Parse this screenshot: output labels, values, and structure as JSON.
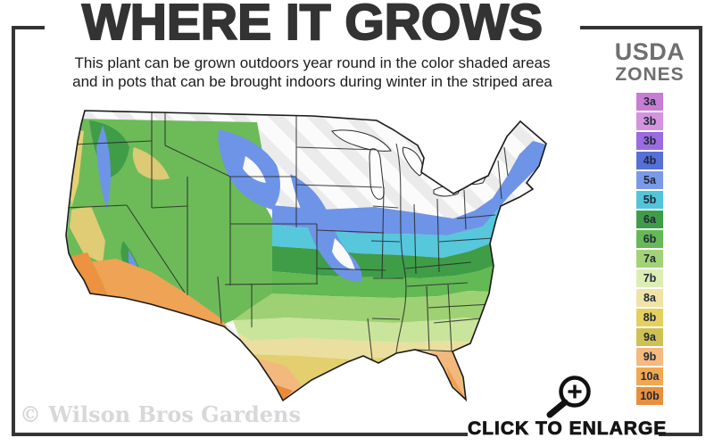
{
  "title": "WHERE IT GROWS",
  "subtitle": {
    "line1": "This plant can be grown outdoors year round in the color shaded areas",
    "line2": "and in pots that can be brought indoors during winter in the striped area"
  },
  "legend": {
    "title_line1": "USDA",
    "title_line2": "ZONES",
    "zones": [
      {
        "label": "3a",
        "color": "#c77dd1"
      },
      {
        "label": "3b",
        "color": "#d393dd"
      },
      {
        "label": "3b",
        "color": "#9a6ce0"
      },
      {
        "label": "4b",
        "color": "#5570d8"
      },
      {
        "label": "5a",
        "color": "#7a9ae8"
      },
      {
        "label": "5b",
        "color": "#52c5da"
      },
      {
        "label": "6a",
        "color": "#3f9c48"
      },
      {
        "label": "6b",
        "color": "#66b957"
      },
      {
        "label": "7a",
        "color": "#a3d377"
      },
      {
        "label": "7b",
        "color": "#dcedb5"
      },
      {
        "label": "8a",
        "color": "#f0e3a6"
      },
      {
        "label": "8b",
        "color": "#e4d05f"
      },
      {
        "label": "9a",
        "color": "#cfc054"
      },
      {
        "label": "9b",
        "color": "#f4ba80"
      },
      {
        "label": "10a",
        "color": "#f2a850"
      },
      {
        "label": "10b",
        "color": "#e88f3c"
      }
    ]
  },
  "watermark": "© Wilson Bros Gardens",
  "enlarge_label": "CLICK TO ENLARGE",
  "icons": {
    "magnifier": "magnifier-plus-icon"
  },
  "colors": {
    "frame": "#343434",
    "title_text": "#333333",
    "legend_title": "#6f6f6f",
    "watermark_text": "#d8d8d8"
  }
}
